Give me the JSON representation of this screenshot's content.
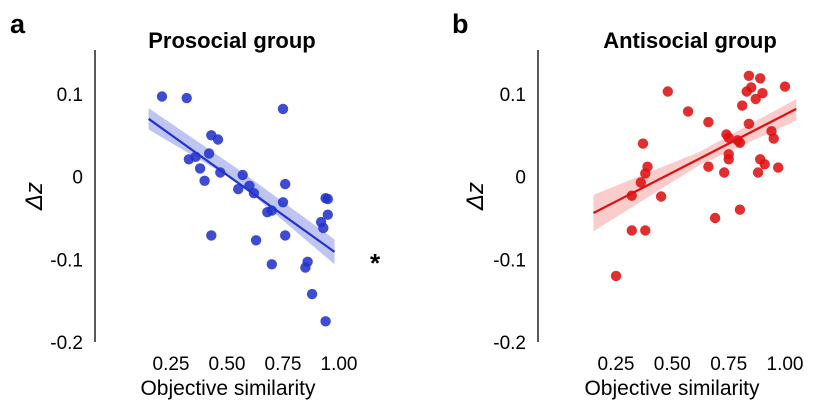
{
  "chart_data": [
    {
      "type": "scatter",
      "panel": "a",
      "title": "Prosocial group",
      "xlabel": "Objective similarity",
      "ylabel": "Δz",
      "xlim": [
        0.08,
        1.05
      ],
      "ylim": [
        -0.2,
        0.14
      ],
      "xticks": [
        "0.25",
        "0.50",
        "0.75",
        "1.00"
      ],
      "xtick_values": [
        0.25,
        0.5,
        0.75,
        1.0
      ],
      "yticks": [
        "0.1",
        "0",
        "-0.1",
        "-0.2"
      ],
      "ytick_values": [
        0.1,
        0,
        -0.1,
        -0.2
      ],
      "color": "#2233cc",
      "band_color": "#8a96e8",
      "significance": "*",
      "fit": {
        "x": [
          0.15,
          0.98
        ],
        "y": [
          0.07,
          -0.091
        ]
      },
      "band": {
        "x": [
          0.15,
          0.55,
          0.98
        ],
        "upper": [
          0.083,
          0.009,
          -0.076
        ],
        "lower": [
          0.057,
          -0.007,
          -0.106
        ]
      },
      "points": [
        [
          0.21,
          0.097
        ],
        [
          0.32,
          0.095
        ],
        [
          0.75,
          0.082
        ],
        [
          0.43,
          0.05
        ],
        [
          0.46,
          0.045
        ],
        [
          0.42,
          0.028
        ],
        [
          0.33,
          0.021
        ],
        [
          0.36,
          0.024
        ],
        [
          0.38,
          0.01
        ],
        [
          0.47,
          0.005
        ],
        [
          0.4,
          -0.005
        ],
        [
          0.57,
          0.002
        ],
        [
          0.55,
          -0.015
        ],
        [
          0.6,
          -0.011
        ],
        [
          0.62,
          -0.02
        ],
        [
          0.76,
          -0.009
        ],
        [
          0.75,
          -0.031
        ],
        [
          0.43,
          -0.071
        ],
        [
          0.63,
          -0.077
        ],
        [
          0.7,
          -0.041
        ],
        [
          0.68,
          -0.043
        ],
        [
          0.76,
          -0.071
        ],
        [
          0.7,
          -0.106
        ],
        [
          0.86,
          -0.103
        ],
        [
          0.85,
          -0.11
        ],
        [
          0.94,
          -0.026
        ],
        [
          0.95,
          -0.027
        ],
        [
          0.95,
          -0.046
        ],
        [
          0.92,
          -0.055
        ],
        [
          0.93,
          -0.062
        ],
        [
          0.88,
          -0.142
        ],
        [
          0.94,
          -0.175
        ]
      ]
    },
    {
      "type": "scatter",
      "panel": "b",
      "title": "Antisocial group",
      "xlabel": "Objective similarity",
      "ylabel": "Δz",
      "xlim": [
        0.08,
        1.05
      ],
      "ylim": [
        -0.2,
        0.14
      ],
      "xticks": [
        "0.25",
        "0.50",
        "0.75",
        "1.00"
      ],
      "xtick_values": [
        0.25,
        0.5,
        0.75,
        1.0
      ],
      "yticks": [
        "0.1",
        "0",
        "-0.1",
        "-0.2"
      ],
      "ytick_values": [
        0.1,
        0,
        -0.1,
        -0.2
      ],
      "color": "#dd1111",
      "band_color": "#f5a3a3",
      "significance": "",
      "fit": {
        "x": [
          0.15,
          1.05
        ],
        "y": [
          -0.044,
          0.082
        ]
      },
      "band": {
        "x": [
          0.15,
          0.62,
          1.05
        ],
        "upper": [
          -0.022,
          0.03,
          0.094
        ],
        "lower": [
          -0.066,
          0.014,
          0.068
        ]
      },
      "points": [
        [
          0.25,
          -0.12
        ],
        [
          0.32,
          -0.065
        ],
        [
          0.38,
          -0.065
        ],
        [
          0.32,
          -0.023
        ],
        [
          0.36,
          -0.007
        ],
        [
          0.38,
          0.004
        ],
        [
          0.39,
          0.012
        ],
        [
          0.37,
          0.04
        ],
        [
          0.45,
          -0.024
        ],
        [
          0.48,
          0.103
        ],
        [
          0.57,
          0.079
        ],
        [
          0.66,
          0.066
        ],
        [
          0.66,
          0.012
        ],
        [
          0.69,
          -0.05
        ],
        [
          0.73,
          0.005
        ],
        [
          0.74,
          0.051
        ],
        [
          0.75,
          0.047
        ],
        [
          0.75,
          0.027
        ],
        [
          0.75,
          0.021
        ],
        [
          0.79,
          0.044
        ],
        [
          0.8,
          0.041
        ],
        [
          0.8,
          -0.04
        ],
        [
          0.81,
          0.086
        ],
        [
          0.84,
          0.064
        ],
        [
          0.83,
          0.103
        ],
        [
          0.84,
          0.122
        ],
        [
          0.85,
          0.108
        ],
        [
          0.87,
          0.094
        ],
        [
          0.89,
          0.119
        ],
        [
          0.9,
          0.101
        ],
        [
          0.89,
          0.021
        ],
        [
          0.91,
          0.015
        ],
        [
          0.88,
          0.005
        ],
        [
          0.94,
          0.055
        ],
        [
          0.95,
          0.046
        ],
        [
          0.97,
          0.011
        ],
        [
          1.0,
          0.109
        ]
      ]
    }
  ]
}
